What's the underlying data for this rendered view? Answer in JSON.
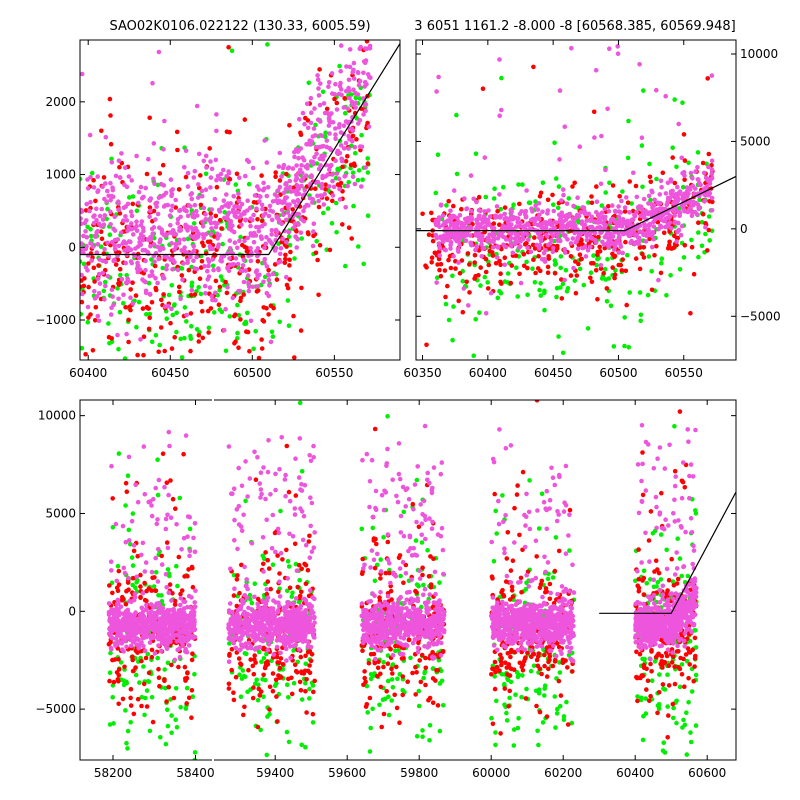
{
  "figure": {
    "background": "#ffffff",
    "colors": {
      "red": "#ff0000",
      "green": "#00ee00",
      "magenta": "#ee55dd",
      "model": "#000000"
    }
  },
  "chart_data": [
    {
      "type": "scatter",
      "title": "SAO02K0106.022122 (130.33, 6005.59)",
      "xlim": [
        60395,
        60590
      ],
      "ylim": [
        -1550,
        2850
      ],
      "xticks": [
        60400,
        60450,
        60500,
        60550
      ],
      "yticks": [
        -1000,
        0,
        1000,
        2000
      ],
      "grid": false,
      "series": [
        {
          "color": "green",
          "seed": 11,
          "n": 320,
          "x": [
            60395,
            60572
          ],
          "mean": -250,
          "sd": 700
        },
        {
          "color": "red",
          "seed": 12,
          "n": 420,
          "x": [
            60395,
            60572
          ],
          "mean": -250,
          "sd": 650
        },
        {
          "color": "magenta",
          "seed": 13,
          "n": 950,
          "x": [
            60395,
            60572
          ],
          "mean": 200,
          "sd": 450
        }
      ],
      "model": {
        "x": [
          60395,
          60510,
          60590
        ],
        "y": [
          -100,
          -100,
          2800
        ]
      }
    },
    {
      "type": "scatter",
      "title": "3 6051 1161.2 -8.000 -8 [60568.385, 60569.948]",
      "xlim": [
        60345,
        60590
      ],
      "ylim": [
        -7500,
        10800
      ],
      "xticks": [
        60350,
        60400,
        60450,
        60500,
        60550
      ],
      "yticks": [
        -5000,
        0,
        5000,
        10000
      ],
      "grid": false,
      "series": [
        {
          "color": "green",
          "seed": 21,
          "n": 260,
          "x": [
            60360,
            60572
          ],
          "mean": -1200,
          "sd": 2200
        },
        {
          "color": "red",
          "seed": 22,
          "n": 420,
          "x": [
            60350,
            60572
          ],
          "mean": -900,
          "sd": 1300
        },
        {
          "color": "magenta",
          "seed": 23,
          "n": 900,
          "x": [
            60360,
            60572
          ],
          "mean": 0,
          "sd": 700
        }
      ],
      "model": {
        "x": [
          60345,
          60505,
          60590
        ],
        "y": [
          -100,
          -100,
          3000
        ]
      }
    },
    {
      "type": "scatter",
      "title": "",
      "broken_x": true,
      "segments": [
        {
          "xlim": [
            58120,
            58440
          ],
          "xticks": [
            58200,
            58400
          ]
        },
        {
          "xlim": [
            59230,
            60680
          ],
          "xticks": [
            59400,
            59600,
            59800,
            60000,
            60200,
            60400,
            60600
          ]
        }
      ],
      "ylim": [
        -7600,
        10800
      ],
      "yticks": [
        -5000,
        0,
        5000,
        10000
      ],
      "grid": false,
      "clusters": [
        {
          "x": [
            58190,
            58400
          ]
        },
        {
          "x": [
            59270,
            59510
          ]
        },
        {
          "x": [
            59640,
            59870
          ]
        },
        {
          "x": [
            60000,
            60230
          ]
        },
        {
          "x": [
            60400,
            60570
          ]
        }
      ],
      "series_per_cluster": [
        {
          "color": "green",
          "n": 140,
          "mean": -2200,
          "sd": 2800
        },
        {
          "color": "red",
          "n": 220,
          "mean": -1400,
          "sd": 1800
        },
        {
          "color": "magenta",
          "n": 650,
          "mean": -700,
          "sd": 600
        }
      ],
      "model": {
        "x": [
          60300,
          60500,
          60680
        ],
        "y": [
          -100,
          -100,
          6100
        ]
      }
    }
  ]
}
